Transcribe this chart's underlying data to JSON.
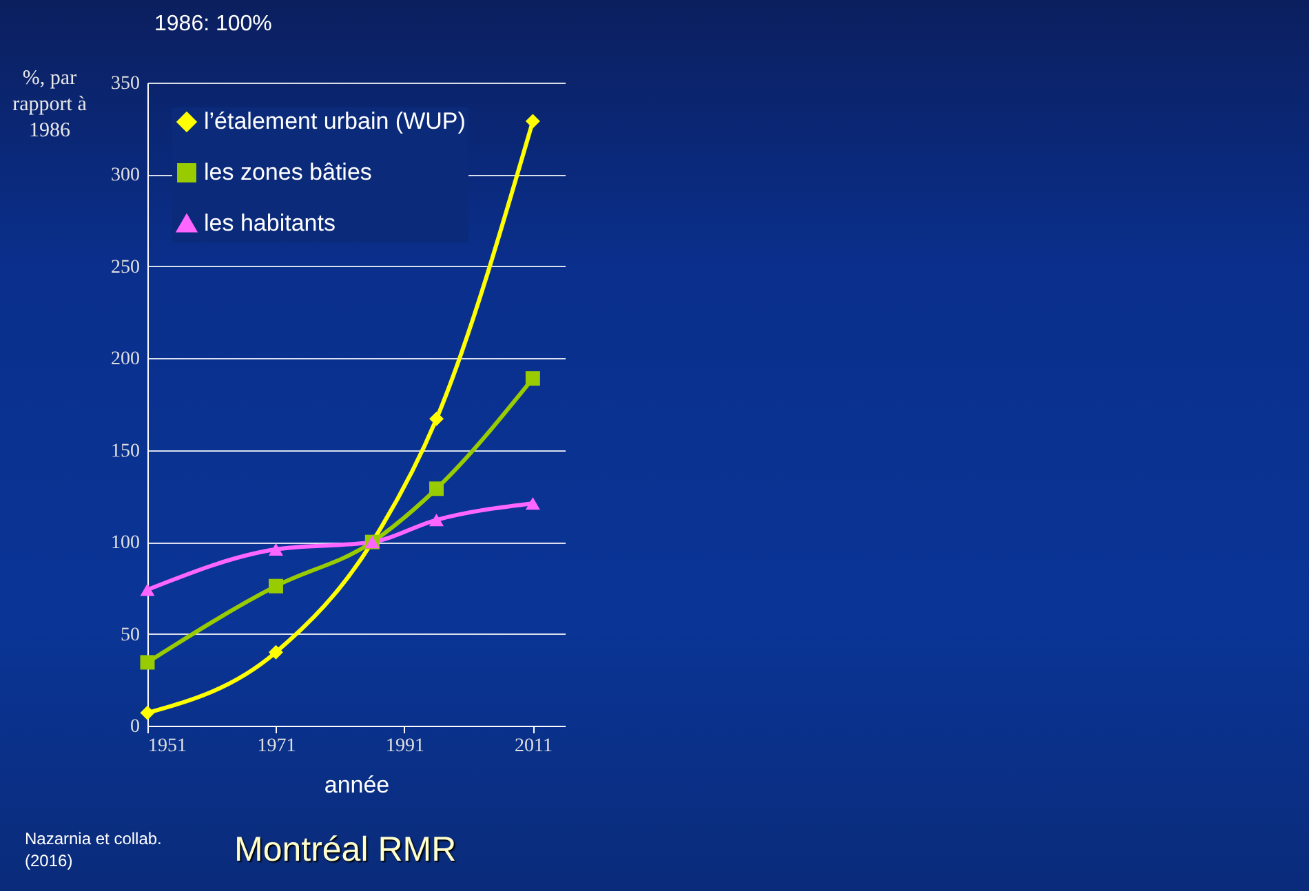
{
  "chart_data": {
    "type": "line",
    "title": "Montréal RMR",
    "subtitle": "1986: 100%",
    "xlabel": "année",
    "ylabel": "%, par rapport à 1986",
    "annotations": [
      "Nazarnia et collab. (2016)"
    ],
    "x": [
      1951,
      1971,
      1986,
      1996,
      2011
    ],
    "xlim": [
      1951,
      2016
    ],
    "xticks": [
      1951,
      1971,
      1991,
      2011
    ],
    "ylim": [
      0,
      350
    ],
    "yticks": [
      0,
      50,
      100,
      150,
      200,
      250,
      300,
      350
    ],
    "grid": "y",
    "legend": "top left",
    "line_style": "solid",
    "series": [
      {
        "name": "l’étalement urbain (WUP)",
        "color": "#ffff00",
        "marker": "diamond",
        "values": [
          7,
          40,
          100,
          167,
          329
        ]
      },
      {
        "name": "les zones bâties",
        "color": "#99cc00",
        "marker": "square",
        "values": [
          34.5,
          76,
          100,
          129,
          189
        ]
      },
      {
        "name": "les habitants",
        "color": "#ff66ff",
        "marker": "triangle",
        "values": [
          74,
          96,
          100,
          112,
          121
        ]
      }
    ]
  }
}
